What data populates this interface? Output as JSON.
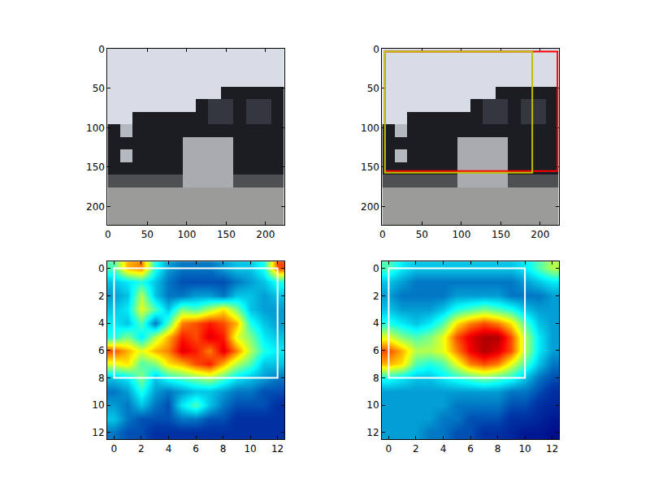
{
  "chart_data": [
    {
      "type": "image",
      "xlim": [
        -0.5,
        223.5
      ],
      "ylim": [
        223.5,
        -0.5
      ],
      "xticks": [
        0,
        50,
        100,
        150,
        200
      ],
      "yticks": [
        0,
        50,
        100,
        150,
        200
      ],
      "pixels": [
        [
          "#d8dce6",
          "#d8dce6",
          "#d8dce6",
          "#d8dce6",
          "#d8dce6",
          "#d8dce6",
          "#d8dce6",
          "#d8dce6",
          "#d8dce6",
          "#d8dce6",
          "#d8dce6",
          "#d8dce6",
          "#d8dce6",
          "#d8dce6"
        ],
        [
          "#d8dce6",
          "#d8dce6",
          "#d8dce6",
          "#d8dce6",
          "#d8dce6",
          "#d8dce6",
          "#d8dce6",
          "#d8dce6",
          "#d8dce6",
          "#d8dce6",
          "#d8dce6",
          "#d8dce6",
          "#d8dce6",
          "#d8dce6"
        ],
        [
          "#d8dce6",
          "#d8dce6",
          "#d8dce6",
          "#d8dce6",
          "#d8dce6",
          "#d8dce6",
          "#d8dce6",
          "#d8dce6",
          "#d8dce6",
          "#d8dce6",
          "#d8dce6",
          "#d8dce6",
          "#d8dce6",
          "#d8dce6"
        ],
        [
          "#d8dce6",
          "#d8dce6",
          "#d8dce6",
          "#d8dce6",
          "#d8dce6",
          "#d8dce6",
          "#d8dce6",
          "#d8dce6",
          "#d8dce6",
          "#1c1d22",
          "#1c1d22",
          "#1c1d22",
          "#1c1d22",
          "#1c1d22"
        ],
        [
          "#d8dce6",
          "#d8dce6",
          "#d8dce6",
          "#d8dce6",
          "#d8dce6",
          "#d8dce6",
          "#d8dce6",
          "#1c1d22",
          "#34373f",
          "#34373f",
          "#1c1d22",
          "#34373f",
          "#34373f",
          "#1c1d22"
        ],
        [
          "#d8dce6",
          "#d8dce6",
          "#1c1d22",
          "#1c1d22",
          "#1c1d22",
          "#1c1d22",
          "#1c1d22",
          "#1c1d22",
          "#34373f",
          "#34373f",
          "#1c1d22",
          "#34373f",
          "#34373f",
          "#1c1d22"
        ],
        [
          "#1c1d22",
          "#b4b8c0",
          "#1c1d22",
          "#1c1d22",
          "#1c1d22",
          "#1c1d22",
          "#1c1d22",
          "#1c1d22",
          "#1c1d22",
          "#1c1d22",
          "#1c1d22",
          "#1c1d22",
          "#1c1d22",
          "#1c1d22"
        ],
        [
          "#1c1d22",
          "#1c1d22",
          "#1c1d22",
          "#1c1d22",
          "#1c1d22",
          "#1c1d22",
          "#a9abb1",
          "#a9abb1",
          "#a9abb1",
          "#a9abb1",
          "#1c1d22",
          "#1c1d22",
          "#1c1d22",
          "#1c1d22"
        ],
        [
          "#1c1d22",
          "#b4b8c0",
          "#1c1d22",
          "#1c1d22",
          "#1c1d22",
          "#1c1d22",
          "#a9abb1",
          "#a9abb1",
          "#a9abb1",
          "#a9abb1",
          "#1c1d22",
          "#1c1d22",
          "#1c1d22",
          "#1c1d22"
        ],
        [
          "#1c1d22",
          "#1c1d22",
          "#1c1d22",
          "#1c1d22",
          "#1c1d22",
          "#1c1d22",
          "#a9abb1",
          "#a9abb1",
          "#a9abb1",
          "#a9abb1",
          "#1c1d22",
          "#1c1d22",
          "#1c1d22",
          "#1c1d22"
        ],
        [
          "#4e4f53",
          "#4e4f53",
          "#4e4f53",
          "#4e4f53",
          "#4e4f53",
          "#4e4f53",
          "#a9abb1",
          "#a9abb1",
          "#a9abb1",
          "#a9abb1",
          "#4e4f53",
          "#4e4f53",
          "#4e4f53",
          "#4e4f53"
        ],
        [
          "#9b9b99",
          "#9b9b99",
          "#9b9b99",
          "#9b9b99",
          "#9b9b99",
          "#9b9b99",
          "#9b9b99",
          "#9b9b99",
          "#9b9b99",
          "#9b9b99",
          "#9b9b99",
          "#9b9b99",
          "#9b9b99",
          "#9b9b99"
        ],
        [
          "#9b9b99",
          "#9b9b99",
          "#9b9b99",
          "#9b9b99",
          "#9b9b99",
          "#9b9b99",
          "#9b9b99",
          "#9b9b99",
          "#9b9b99",
          "#9b9b99",
          "#9b9b99",
          "#9b9b99",
          "#9b9b99",
          "#9b9b99"
        ],
        [
          "#9b9b99",
          "#9b9b99",
          "#9b9b99",
          "#9b9b99",
          "#9b9b99",
          "#9b9b99",
          "#9b9b99",
          "#9b9b99",
          "#9b9b99",
          "#9b9b99",
          "#9b9b99",
          "#9b9b99",
          "#9b9b99",
          "#9b9b99"
        ]
      ]
    },
    {
      "type": "image",
      "xlim": [
        -0.5,
        223.5
      ],
      "ylim": [
        223.5,
        -0.5
      ],
      "xticks": [
        0,
        50,
        100,
        150,
        200
      ],
      "yticks": [
        0,
        50,
        100,
        150,
        200
      ],
      "pixels": [
        [
          "#d8dce6",
          "#d8dce6",
          "#d8dce6",
          "#d8dce6",
          "#d8dce6",
          "#d8dce6",
          "#d8dce6",
          "#d8dce6",
          "#d8dce6",
          "#d8dce6",
          "#d8dce6",
          "#d8dce6",
          "#d8dce6",
          "#d8dce6"
        ],
        [
          "#d8dce6",
          "#d8dce6",
          "#d8dce6",
          "#d8dce6",
          "#d8dce6",
          "#d8dce6",
          "#d8dce6",
          "#d8dce6",
          "#d8dce6",
          "#d8dce6",
          "#d8dce6",
          "#d8dce6",
          "#d8dce6",
          "#d8dce6"
        ],
        [
          "#d8dce6",
          "#d8dce6",
          "#d8dce6",
          "#d8dce6",
          "#d8dce6",
          "#d8dce6",
          "#d8dce6",
          "#d8dce6",
          "#d8dce6",
          "#d8dce6",
          "#d8dce6",
          "#d8dce6",
          "#d8dce6",
          "#d8dce6"
        ],
        [
          "#d8dce6",
          "#d8dce6",
          "#d8dce6",
          "#d8dce6",
          "#d8dce6",
          "#d8dce6",
          "#d8dce6",
          "#d8dce6",
          "#d8dce6",
          "#1c1d22",
          "#1c1d22",
          "#1c1d22",
          "#1c1d22",
          "#1c1d22"
        ],
        [
          "#d8dce6",
          "#d8dce6",
          "#d8dce6",
          "#d8dce6",
          "#d8dce6",
          "#d8dce6",
          "#d8dce6",
          "#1c1d22",
          "#34373f",
          "#34373f",
          "#1c1d22",
          "#34373f",
          "#34373f",
          "#1c1d22"
        ],
        [
          "#d8dce6",
          "#d8dce6",
          "#1c1d22",
          "#1c1d22",
          "#1c1d22",
          "#1c1d22",
          "#1c1d22",
          "#1c1d22",
          "#34373f",
          "#34373f",
          "#1c1d22",
          "#34373f",
          "#34373f",
          "#1c1d22"
        ],
        [
          "#1c1d22",
          "#b4b8c0",
          "#1c1d22",
          "#1c1d22",
          "#1c1d22",
          "#1c1d22",
          "#1c1d22",
          "#1c1d22",
          "#1c1d22",
          "#1c1d22",
          "#1c1d22",
          "#1c1d22",
          "#1c1d22",
          "#1c1d22"
        ],
        [
          "#1c1d22",
          "#1c1d22",
          "#1c1d22",
          "#1c1d22",
          "#1c1d22",
          "#1c1d22",
          "#a9abb1",
          "#a9abb1",
          "#a9abb1",
          "#a9abb1",
          "#1c1d22",
          "#1c1d22",
          "#1c1d22",
          "#1c1d22"
        ],
        [
          "#1c1d22",
          "#b4b8c0",
          "#1c1d22",
          "#1c1d22",
          "#1c1d22",
          "#1c1d22",
          "#a9abb1",
          "#a9abb1",
          "#a9abb1",
          "#a9abb1",
          "#1c1d22",
          "#1c1d22",
          "#1c1d22",
          "#1c1d22"
        ],
        [
          "#1c1d22",
          "#1c1d22",
          "#1c1d22",
          "#1c1d22",
          "#1c1d22",
          "#1c1d22",
          "#a9abb1",
          "#a9abb1",
          "#a9abb1",
          "#a9abb1",
          "#1c1d22",
          "#1c1d22",
          "#1c1d22",
          "#1c1d22"
        ],
        [
          "#4e4f53",
          "#4e4f53",
          "#4e4f53",
          "#4e4f53",
          "#4e4f53",
          "#4e4f53",
          "#a9abb1",
          "#a9abb1",
          "#a9abb1",
          "#a9abb1",
          "#4e4f53",
          "#4e4f53",
          "#4e4f53",
          "#4e4f53"
        ],
        [
          "#9b9b99",
          "#9b9b99",
          "#9b9b99",
          "#9b9b99",
          "#9b9b99",
          "#9b9b99",
          "#9b9b99",
          "#9b9b99",
          "#9b9b99",
          "#9b9b99",
          "#9b9b99",
          "#9b9b99",
          "#9b9b99",
          "#9b9b99"
        ],
        [
          "#9b9b99",
          "#9b9b99",
          "#9b9b99",
          "#9b9b99",
          "#9b9b99",
          "#9b9b99",
          "#9b9b99",
          "#9b9b99",
          "#9b9b99",
          "#9b9b99",
          "#9b9b99",
          "#9b9b99",
          "#9b9b99",
          "#9b9b99"
        ],
        [
          "#9b9b99",
          "#9b9b99",
          "#9b9b99",
          "#9b9b99",
          "#9b9b99",
          "#9b9b99",
          "#9b9b99",
          "#9b9b99",
          "#9b9b99",
          "#9b9b99",
          "#9b9b99",
          "#9b9b99",
          "#9b9b99",
          "#9b9b99"
        ]
      ],
      "boxes": [
        {
          "x0": 3,
          "y0": 3,
          "x1": 222,
          "y1": 155,
          "color": "#ff0000"
        },
        {
          "x0": 3,
          "y0": 3,
          "x1": 190,
          "y1": 157,
          "color": "#bfbf00"
        }
      ]
    },
    {
      "type": "heatmap",
      "xlim": [
        -0.5,
        12.5
      ],
      "ylim": [
        12.5,
        -0.5
      ],
      "xticks": [
        0,
        2,
        4,
        6,
        8,
        10,
        12
      ],
      "yticks": [
        0,
        2,
        4,
        6,
        8,
        10,
        12
      ],
      "zlim": [
        0,
        1
      ],
      "cells": [
        [
          0.45,
          0.7,
          0.75,
          0.4,
          0.25,
          0.2,
          0.2,
          0.2,
          0.25,
          0.3,
          0.3,
          0.4,
          0.8
        ],
        [
          0.3,
          0.35,
          0.4,
          0.3,
          0.2,
          0.15,
          0.15,
          0.15,
          0.15,
          0.2,
          0.25,
          0.3,
          0.4
        ],
        [
          0.25,
          0.3,
          0.55,
          0.3,
          0.2,
          0.2,
          0.25,
          0.25,
          0.2,
          0.3,
          0.3,
          0.25,
          0.3
        ],
        [
          0.3,
          0.35,
          0.6,
          0.45,
          0.3,
          0.5,
          0.45,
          0.55,
          0.65,
          0.5,
          0.3,
          0.25,
          0.25
        ],
        [
          0.35,
          0.3,
          0.45,
          0.2,
          0.45,
          0.75,
          0.8,
          0.85,
          0.8,
          0.7,
          0.4,
          0.3,
          0.25
        ],
        [
          0.4,
          0.5,
          0.35,
          0.55,
          0.7,
          0.85,
          0.8,
          0.9,
          0.85,
          0.6,
          0.5,
          0.35,
          0.3
        ],
        [
          0.8,
          0.7,
          0.6,
          0.7,
          0.75,
          0.9,
          0.85,
          0.75,
          0.9,
          0.75,
          0.55,
          0.4,
          0.35
        ],
        [
          0.6,
          0.65,
          0.45,
          0.5,
          0.65,
          0.7,
          0.8,
          0.85,
          0.7,
          0.55,
          0.45,
          0.3,
          0.3
        ],
        [
          0.3,
          0.35,
          0.5,
          0.3,
          0.4,
          0.45,
          0.5,
          0.55,
          0.45,
          0.35,
          0.3,
          0.25,
          0.2
        ],
        [
          0.2,
          0.25,
          0.4,
          0.25,
          0.2,
          0.25,
          0.3,
          0.3,
          0.25,
          0.2,
          0.2,
          0.15,
          0.15
        ],
        [
          0.25,
          0.2,
          0.3,
          0.2,
          0.15,
          0.35,
          0.45,
          0.3,
          0.2,
          0.15,
          0.15,
          0.15,
          0.1
        ],
        [
          0.3,
          0.2,
          0.15,
          0.15,
          0.15,
          0.2,
          0.2,
          0.15,
          0.15,
          0.1,
          0.1,
          0.1,
          0.1
        ],
        [
          0.2,
          0.15,
          0.15,
          0.1,
          0.1,
          0.1,
          0.1,
          0.1,
          0.1,
          0.1,
          0.1,
          0.1,
          0.1
        ]
      ],
      "boxes": [
        {
          "x0": 0,
          "y0": 0,
          "x1": 12,
          "y1": 8,
          "color": "#ffffff"
        }
      ]
    },
    {
      "type": "heatmap",
      "xlim": [
        -0.5,
        12.5
      ],
      "ylim": [
        12.5,
        -0.5
      ],
      "xticks": [
        0,
        2,
        4,
        6,
        8,
        10,
        12
      ],
      "yticks": [
        0,
        2,
        4,
        6,
        8,
        10,
        12
      ],
      "zlim": [
        0,
        1
      ],
      "cells": [
        [
          0.45,
          0.35,
          0.3,
          0.3,
          0.3,
          0.3,
          0.3,
          0.3,
          0.3,
          0.3,
          0.35,
          0.45,
          0.55
        ],
        [
          0.3,
          0.25,
          0.2,
          0.2,
          0.2,
          0.2,
          0.2,
          0.2,
          0.2,
          0.2,
          0.25,
          0.3,
          0.35
        ],
        [
          0.25,
          0.2,
          0.2,
          0.2,
          0.2,
          0.25,
          0.25,
          0.25,
          0.25,
          0.2,
          0.2,
          0.2,
          0.25
        ],
        [
          0.3,
          0.25,
          0.25,
          0.25,
          0.3,
          0.4,
          0.45,
          0.5,
          0.45,
          0.4,
          0.3,
          0.25,
          0.25
        ],
        [
          0.4,
          0.35,
          0.3,
          0.35,
          0.45,
          0.65,
          0.75,
          0.8,
          0.75,
          0.65,
          0.45,
          0.3,
          0.25
        ],
        [
          0.6,
          0.5,
          0.45,
          0.5,
          0.6,
          0.8,
          0.9,
          0.95,
          0.95,
          0.8,
          0.55,
          0.35,
          0.25
        ],
        [
          0.8,
          0.7,
          0.55,
          0.55,
          0.6,
          0.75,
          0.88,
          0.95,
          0.9,
          0.8,
          0.55,
          0.35,
          0.25
        ],
        [
          0.7,
          0.65,
          0.45,
          0.4,
          0.45,
          0.6,
          0.75,
          0.8,
          0.75,
          0.6,
          0.45,
          0.3,
          0.2
        ],
        [
          0.4,
          0.35,
          0.3,
          0.3,
          0.35,
          0.4,
          0.45,
          0.5,
          0.45,
          0.4,
          0.3,
          0.2,
          0.15
        ],
        [
          0.25,
          0.25,
          0.25,
          0.25,
          0.25,
          0.25,
          0.25,
          0.25,
          0.25,
          0.2,
          0.2,
          0.15,
          0.1
        ],
        [
          0.25,
          0.25,
          0.25,
          0.25,
          0.25,
          0.2,
          0.2,
          0.2,
          0.2,
          0.15,
          0.15,
          0.1,
          0.08
        ],
        [
          0.25,
          0.25,
          0.25,
          0.25,
          0.2,
          0.2,
          0.15,
          0.15,
          0.15,
          0.1,
          0.1,
          0.08,
          0.05
        ],
        [
          0.25,
          0.25,
          0.25,
          0.2,
          0.2,
          0.15,
          0.15,
          0.1,
          0.1,
          0.08,
          0.05,
          0.05,
          0.03
        ]
      ],
      "boxes": [
        {
          "x0": 0,
          "y0": 0,
          "x1": 10,
          "y1": 8,
          "color": "#ffffff"
        }
      ]
    }
  ]
}
